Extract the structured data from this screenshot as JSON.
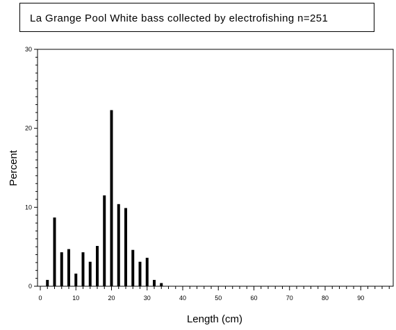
{
  "chart_data": {
    "type": "bar",
    "title": "La Grange Pool White bass collected by electrofishing n=251",
    "xlabel": "Length (cm)",
    "ylabel": "Percent",
    "xlim": [
      0,
      98
    ],
    "ylim": [
      0,
      30
    ],
    "x_tick_labels": [
      "0",
      "10",
      "20",
      "30",
      "40",
      "50",
      "60",
      "70",
      "80",
      "90"
    ],
    "y_tick_labels": [
      "0",
      "10",
      "20",
      "30"
    ],
    "x": [
      2,
      4,
      6,
      8,
      10,
      12,
      14,
      16,
      18,
      20,
      22,
      24,
      26,
      28,
      30,
      32,
      34
    ],
    "values": [
      0.8,
      8.7,
      4.3,
      4.7,
      1.6,
      4.3,
      3.1,
      5.1,
      11.5,
      22.3,
      10.4,
      9.9,
      4.6,
      3.1,
      3.6,
      0.8,
      0.4
    ],
    "grid": false,
    "bar_color": "#000000"
  }
}
